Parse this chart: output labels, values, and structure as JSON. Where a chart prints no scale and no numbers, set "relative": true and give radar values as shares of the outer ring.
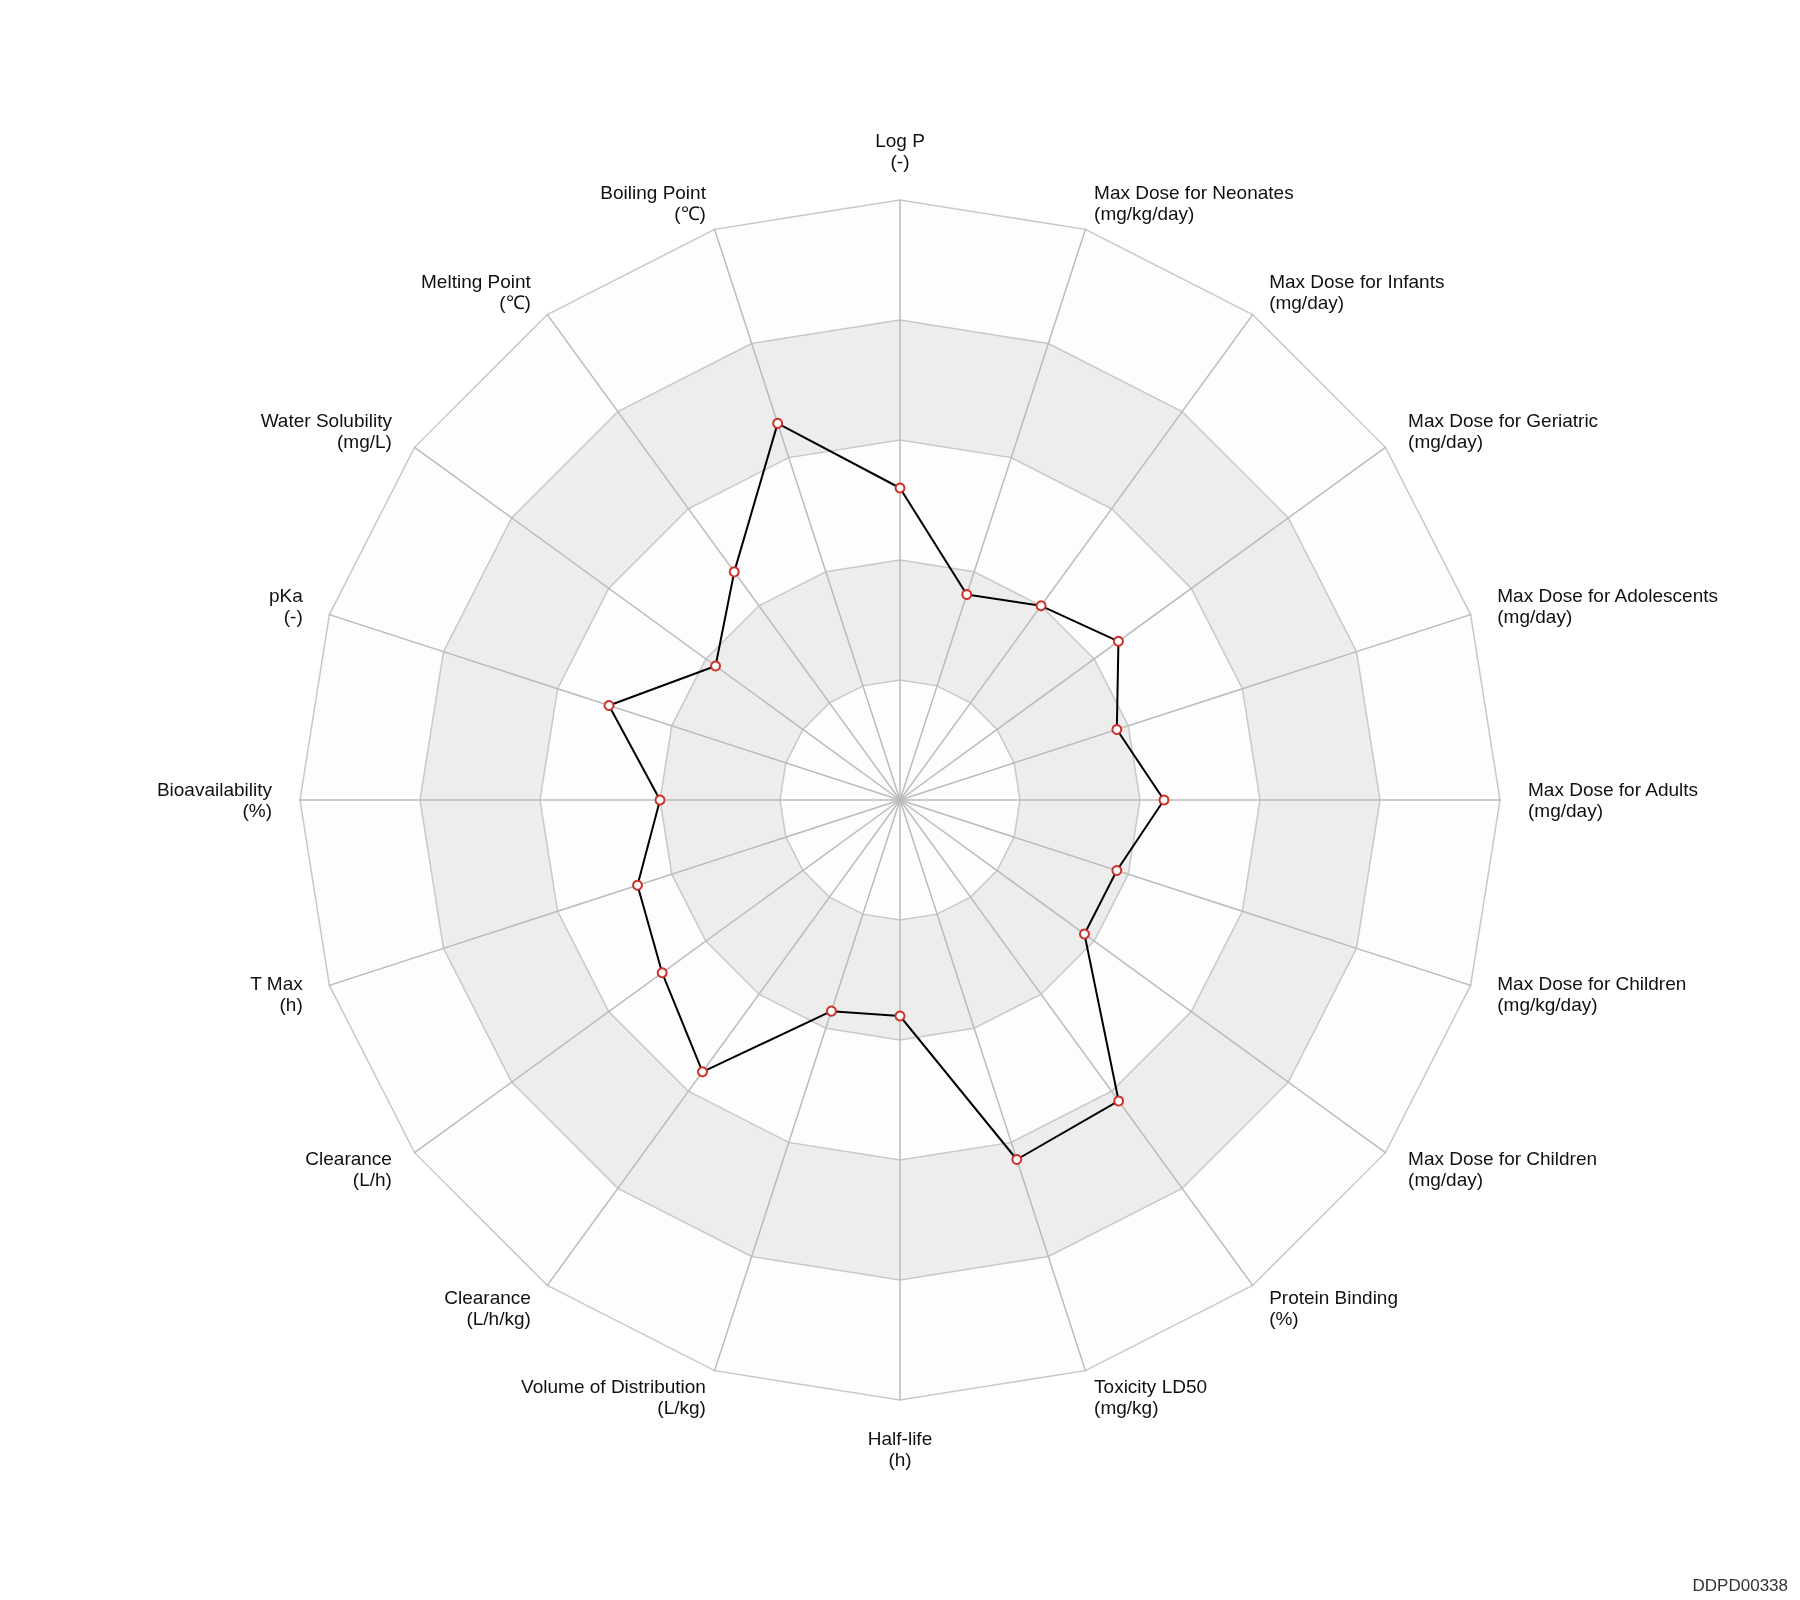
{
  "chart_data": {
    "type": "radar",
    "categories": [
      "Log P\n(-)",
      "Max Dose for Neonates\n(mg/kg/day)",
      "Max Dose for Infants\n(mg/day)",
      "Max Dose for Geriatric\n(mg/day)",
      "Max Dose for Adolescents\n(mg/day)",
      "Max Dose for Adults\n(mg/day)",
      "Max Dose for Children\n(mg/kg/day)",
      "Max Dose for Children\n(mg/day)",
      "Protein Binding\n(%)",
      "Toxicity LD50\n(mg/kg)",
      "Half-life\n(h)",
      "Volume of Distribution\n(L/kg)",
      "Clearance\n(L/h/kg)",
      "Clearance\n(L/h)",
      "T Max\n(h)",
      "Bioavailability\n(%)",
      "pKa\n(-)",
      "Water Solubility\n(mg/L)",
      "Melting Point\n(℃)",
      "Boiling Point\n(℃)"
    ],
    "relative": true,
    "series": [
      {
        "color": "#000000",
        "values": [
          0.52,
          0.36,
          0.4,
          0.45,
          0.38,
          0.44,
          0.38,
          0.38,
          0.62,
          0.63,
          0.36,
          0.37,
          0.56,
          0.49,
          0.46,
          0.4,
          0.51,
          0.38,
          0.47,
          0.66
        ]
      }
    ],
    "grid": true,
    "marker": "circle",
    "line_style": "solid",
    "annotations": [
      "DDPD00338"
    ]
  }
}
